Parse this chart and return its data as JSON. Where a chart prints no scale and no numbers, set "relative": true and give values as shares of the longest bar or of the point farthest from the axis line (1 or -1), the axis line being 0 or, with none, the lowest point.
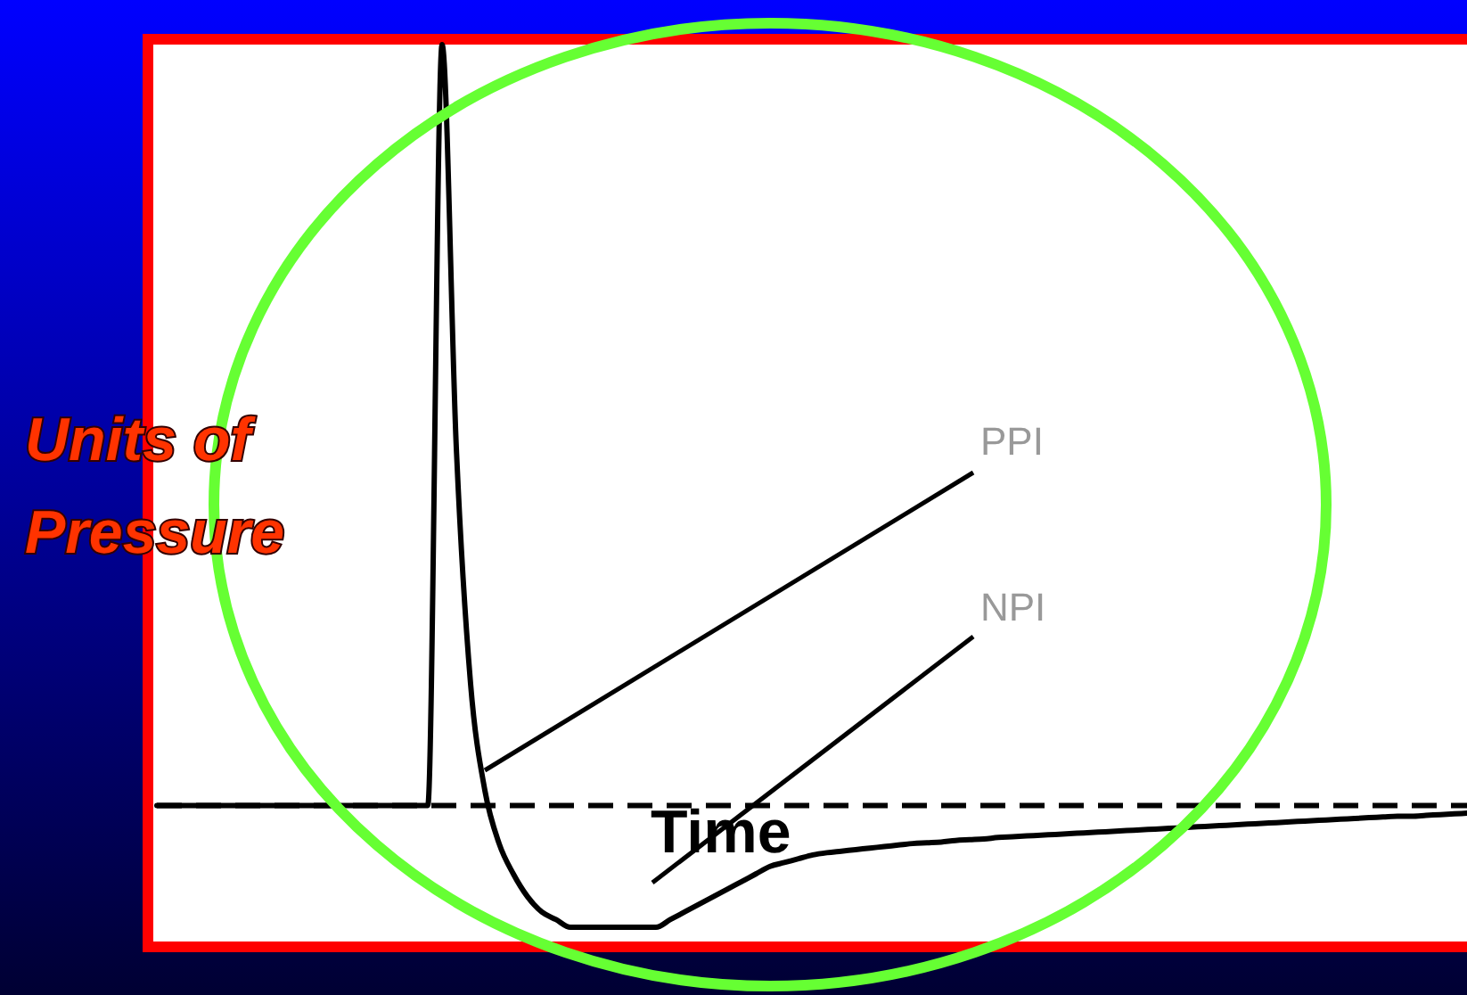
{
  "chart_data": {
    "type": "line",
    "relative": true,
    "xlabel": "Time",
    "ylabel": "Units of Pressure",
    "annotations": [
      "PPI",
      "NPI"
    ],
    "categories": [
      null,
      null,
      null,
      null,
      null,
      null,
      null,
      null,
      null,
      null,
      null,
      null,
      null,
      null,
      null,
      null,
      null,
      null,
      null,
      null,
      null,
      null,
      null,
      null,
      null,
      null,
      null,
      null,
      null,
      null,
      null,
      null,
      null,
      null,
      null,
      null,
      null,
      null,
      null,
      null,
      null,
      null,
      null,
      null,
      null,
      null,
      null,
      null,
      null,
      null,
      null,
      null,
      null,
      null,
      null,
      null,
      null,
      null,
      null,
      null,
      null,
      null,
      null,
      null,
      null,
      null,
      null,
      null,
      null,
      null,
      null,
      null,
      null,
      null,
      null,
      null,
      null,
      null,
      null,
      null,
      null,
      null,
      null,
      null,
      null,
      null,
      null,
      null,
      null,
      null,
      null,
      null,
      null
    ],
    "series": [
      {
        "color": "#000000",
        "values": [
          0,
          0,
          0,
          0,
          0,
          0,
          0,
          0,
          0,
          0,
          0,
          0,
          0,
          0,
          0,
          0,
          0,
          0,
          0,
          0,
          1,
          0.47,
          0.16,
          0.02,
          -0.05,
          -0.09,
          -0.12,
          -0.14,
          -0.15,
          -0.16,
          -0.16,
          -0.16,
          -0.16,
          -0.16,
          -0.16,
          -0.16,
          -0.15,
          -0.14,
          -0.13,
          -0.12,
          -0.11,
          -0.1,
          -0.09,
          -0.08,
          -0.075,
          -0.07,
          -0.065,
          -0.062,
          -0.06,
          -0.058,
          -0.056,
          -0.054,
          -0.052,
          -0.05,
          -0.049,
          -0.048,
          -0.046,
          -0.045,
          -0.044,
          -0.042,
          -0.041,
          -0.04,
          -0.039,
          -0.038,
          -0.037,
          -0.036,
          -0.035,
          -0.034,
          -0.033,
          -0.032,
          -0.031,
          -0.03,
          -0.029,
          -0.028,
          -0.027,
          -0.026,
          -0.025,
          -0.024,
          -0.023,
          -0.022,
          -0.021,
          -0.02,
          -0.019,
          -0.018,
          -0.017,
          -0.016,
          -0.015,
          -0.014,
          -0.014,
          -0.013,
          -0.012,
          -0.011,
          -0.01
        ]
      }
    ],
    "ref_lines": [
      {
        "axis": "y",
        "value": 0,
        "line_style": "dashed",
        "color": "#000000"
      }
    ],
    "line_style": "solid"
  }
}
